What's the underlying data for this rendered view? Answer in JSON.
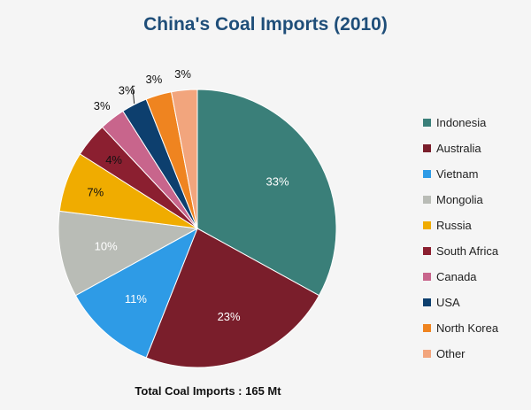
{
  "chart_data": {
    "type": "pie",
    "title": "China's Coal Imports (2010)",
    "footer": "Total Coal Imports : 165 Mt",
    "legend_position": "right",
    "slices": [
      {
        "label": "Indonesia",
        "value": 33,
        "display": "33%",
        "color": "#3a7f79"
      },
      {
        "label": "Australia",
        "value": 23,
        "display": "23%",
        "color": "#7a1e2b"
      },
      {
        "label": "Vietnam",
        "value": 11,
        "display": "11%",
        "color": "#2e9be6"
      },
      {
        "label": "Mongolia",
        "value": 10,
        "display": "10%",
        "color": "#b9bcb6"
      },
      {
        "label": "Russia",
        "value": 7,
        "display": "7%",
        "color": "#f0ac00"
      },
      {
        "label": "South Africa",
        "value": 4,
        "display": "4%",
        "color": "#8b1f30"
      },
      {
        "label": "Canada",
        "value": 3,
        "display": "3%",
        "color": "#c8658c"
      },
      {
        "label": "USA",
        "value": 3,
        "display": "3%",
        "color": "#0d3f6e"
      },
      {
        "label": "North Korea",
        "value": 3,
        "display": "3%",
        "color": "#ef8420"
      },
      {
        "label": "Other",
        "value": 3,
        "display": "3%",
        "color": "#f2a57d"
      }
    ]
  }
}
